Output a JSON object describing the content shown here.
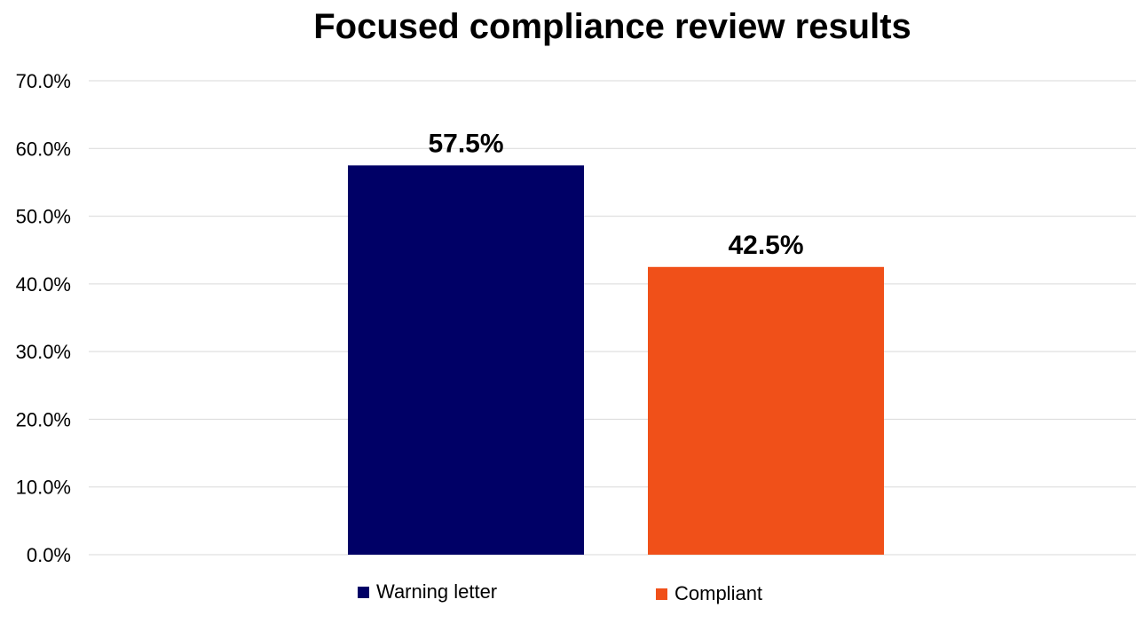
{
  "chart_data": {
    "type": "bar",
    "title": "Focused compliance review results",
    "categories": [
      "Warning letter",
      "Compliant"
    ],
    "values": [
      57.5,
      42.5
    ],
    "data_labels": [
      "57.5%",
      "42.5%"
    ],
    "colors": [
      "#000066",
      "#F05019"
    ],
    "ylim": [
      0,
      70
    ],
    "yticks": [
      0,
      10,
      20,
      30,
      40,
      50,
      60,
      70
    ],
    "ytick_labels": [
      "0.0%",
      "10.0%",
      "20.0%",
      "30.0%",
      "40.0%",
      "50.0%",
      "60.0%",
      "70.0%"
    ],
    "grid": true,
    "legend_position": "bottom",
    "legend": [
      {
        "label": "Warning letter",
        "color": "#000066"
      },
      {
        "label": "Compliant",
        "color": "#F05019"
      }
    ],
    "xlabel": "",
    "ylabel": ""
  }
}
